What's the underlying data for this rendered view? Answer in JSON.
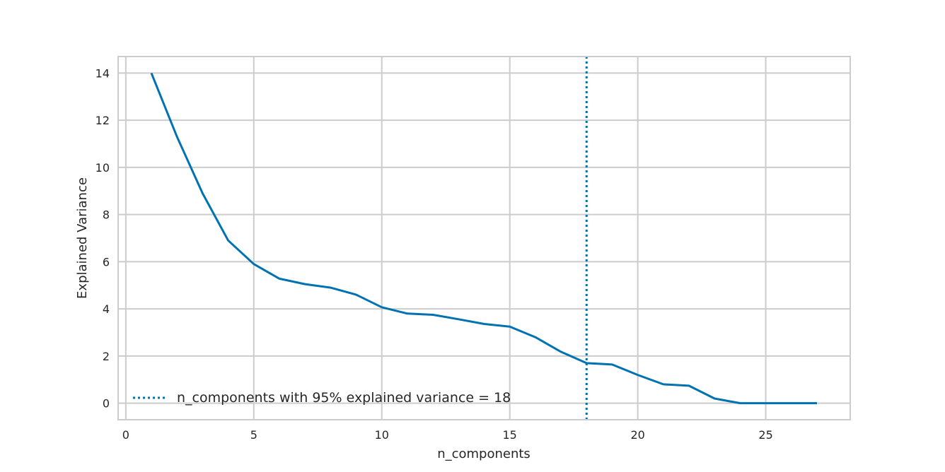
{
  "chart_data": {
    "type": "line",
    "title": "",
    "xlabel": "n_components",
    "ylabel": "Explained Variance",
    "xlim": [
      -0.3,
      28.3
    ],
    "ylim": [
      -0.7,
      14.7
    ],
    "x_ticks": [
      0,
      5,
      10,
      15,
      20,
      25
    ],
    "y_ticks": [
      0,
      2,
      4,
      6,
      8,
      10,
      12,
      14
    ],
    "grid": true,
    "legend_position": "lower-left",
    "colors": {
      "series": "#0072b2",
      "grid": "#cccccc",
      "frame": "#cccccc"
    },
    "series": [
      {
        "x": [
          1,
          2,
          3,
          4,
          5,
          6,
          7,
          8,
          9,
          10,
          11,
          12,
          13,
          14,
          15,
          16,
          17,
          18,
          19,
          20,
          21,
          22,
          23,
          24,
          25,
          26,
          27
        ],
        "values": [
          14.0,
          11.3,
          8.9,
          6.9,
          5.9,
          5.28,
          5.05,
          4.9,
          4.6,
          4.07,
          3.8,
          3.75,
          3.56,
          3.36,
          3.25,
          2.8,
          2.18,
          1.7,
          1.64,
          1.2,
          0.8,
          0.74,
          0.2,
          0.0,
          0.0,
          0.0,
          0.0
        ]
      }
    ],
    "annotations": [
      {
        "type": "vline",
        "x": 18,
        "style": "dotted",
        "label": "n_components with 95% explained variance = 18"
      }
    ]
  }
}
